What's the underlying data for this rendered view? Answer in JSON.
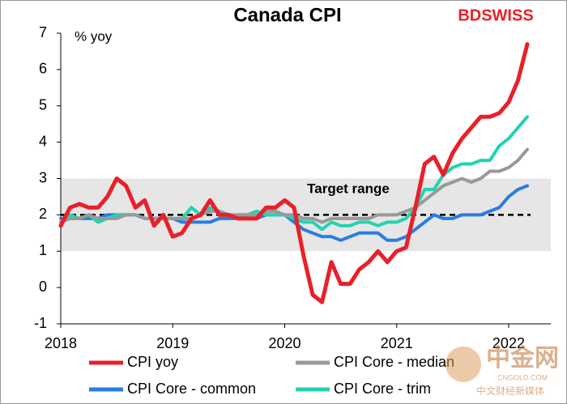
{
  "chart_data": {
    "type": "line",
    "title": "Canada CPI",
    "y_label": "% yoy",
    "logo": "BDSWISS",
    "annotation": "Target range",
    "target_band": [
      1,
      3
    ],
    "target_line": 2,
    "watermark": {
      "name": "中金网",
      "site": "CNGOLD.COM",
      "tagline": "中文财经新媒体"
    },
    "categories": [
      "2018",
      null,
      null,
      null,
      null,
      null,
      null,
      null,
      null,
      null,
      null,
      null,
      "2019",
      null,
      null,
      null,
      null,
      null,
      null,
      null,
      null,
      null,
      null,
      null,
      "2020",
      null,
      null,
      null,
      null,
      null,
      null,
      null,
      null,
      null,
      null,
      null,
      "2021",
      null,
      null,
      null,
      null,
      null,
      null,
      null,
      null,
      null,
      null,
      null,
      "2022",
      null,
      null
    ],
    "ylim": [
      -1,
      7
    ],
    "yticks": [
      -1,
      0,
      1,
      2,
      3,
      4,
      5,
      6,
      7
    ],
    "series": [
      {
        "name": "CPI yoy",
        "color": "#e8202a",
        "values": [
          1.7,
          2.2,
          2.3,
          2.2,
          2.2,
          2.5,
          3.0,
          2.8,
          2.2,
          2.4,
          1.7,
          2.0,
          1.4,
          1.5,
          1.9,
          2.0,
          2.4,
          2.0,
          2.0,
          1.9,
          1.9,
          1.9,
          2.2,
          2.2,
          2.4,
          2.2,
          0.9,
          -0.2,
          -0.4,
          0.7,
          0.1,
          0.1,
          0.5,
          0.7,
          1.0,
          0.7,
          1.0,
          1.1,
          2.2,
          3.4,
          3.6,
          3.1,
          3.7,
          4.1,
          4.4,
          4.7,
          4.7,
          4.8,
          5.1,
          5.7,
          6.7
        ]
      },
      {
        "name": "CPI Core - median",
        "color": "#999999",
        "values": [
          1.8,
          1.9,
          1.9,
          2.0,
          1.9,
          1.9,
          1.9,
          2.0,
          2.0,
          1.9,
          1.9,
          1.9,
          1.9,
          1.9,
          1.9,
          2.0,
          2.1,
          2.1,
          2.0,
          2.0,
          2.0,
          2.0,
          2.1,
          2.1,
          2.0,
          2.0,
          1.9,
          1.9,
          1.8,
          1.9,
          1.9,
          1.9,
          1.9,
          1.9,
          2.0,
          2.0,
          2.0,
          2.1,
          2.2,
          2.4,
          2.6,
          2.8,
          2.9,
          3.0,
          2.9,
          3.0,
          3.2,
          3.2,
          3.3,
          3.5,
          3.8
        ]
      },
      {
        "name": "CPI Core - common",
        "color": "#2a7de1",
        "values": [
          1.9,
          1.9,
          1.9,
          1.9,
          1.9,
          2.0,
          2.0,
          2.0,
          2.0,
          1.9,
          1.9,
          1.9,
          1.9,
          1.8,
          1.8,
          1.8,
          1.8,
          1.9,
          1.9,
          1.9,
          1.9,
          1.9,
          2.0,
          2.0,
          2.0,
          1.8,
          1.6,
          1.5,
          1.4,
          1.4,
          1.3,
          1.4,
          1.5,
          1.5,
          1.5,
          1.3,
          1.3,
          1.4,
          1.6,
          1.8,
          2.0,
          1.9,
          1.9,
          2.0,
          2.0,
          2.0,
          2.1,
          2.2,
          2.5,
          2.7,
          2.8
        ]
      },
      {
        "name": "CPI Core - trim",
        "color": "#22d3b0",
        "values": [
          1.8,
          2.0,
          1.9,
          2.0,
          1.8,
          1.9,
          2.0,
          2.0,
          2.0,
          1.9,
          1.9,
          1.9,
          1.9,
          1.9,
          2.2,
          2.0,
          2.2,
          2.1,
          2.0,
          2.0,
          2.0,
          2.1,
          2.0,
          2.0,
          2.0,
          1.9,
          1.8,
          1.8,
          1.6,
          1.8,
          1.7,
          1.7,
          1.8,
          1.8,
          1.7,
          1.8,
          1.8,
          1.9,
          2.2,
          2.7,
          2.7,
          3.1,
          3.3,
          3.4,
          3.4,
          3.5,
          3.5,
          3.9,
          4.1,
          4.4,
          4.7
        ]
      }
    ]
  }
}
